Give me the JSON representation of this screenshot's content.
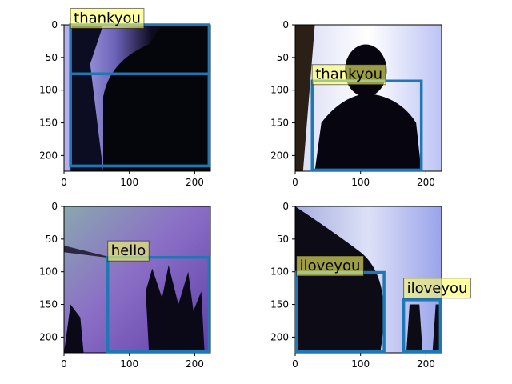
{
  "figure": {
    "detection_label_bg": "#ffff66",
    "box_color": "#1f77b4"
  },
  "panels": [
    {
      "name": "panel-top-left",
      "xticks": [
        "0",
        "100",
        "200"
      ],
      "yticks": [
        "0",
        "50",
        "100",
        "150",
        "200"
      ],
      "image_style": "dark-left",
      "detections": [
        {
          "label": "thankyou",
          "box": [
            10,
            0,
            222,
            216
          ],
          "label_anchor": [
            10,
            -8
          ]
        },
        {
          "label": "",
          "box": [
            10,
            75,
            222,
            216
          ],
          "label_anchor": null
        }
      ]
    },
    {
      "name": "panel-top-right",
      "xticks": [
        "0",
        "100",
        "200"
      ],
      "yticks": [
        "0",
        "50",
        "100",
        "150",
        "200"
      ],
      "image_style": "silhouette",
      "detections": [
        {
          "label": "thankyou",
          "box": [
            26,
            86,
            193,
            222
          ],
          "label_anchor": [
            26,
            78
          ]
        }
      ]
    },
    {
      "name": "panel-bottom-left",
      "xticks": [
        "0",
        "100",
        "200"
      ],
      "yticks": [
        "0",
        "50",
        "100",
        "150",
        "200"
      ],
      "image_style": "hand-purple",
      "detections": [
        {
          "label": "hello",
          "box": [
            67,
            78,
            222,
            222
          ],
          "label_anchor": [
            67,
            70
          ]
        }
      ]
    },
    {
      "name": "panel-bottom-right",
      "xticks": [
        "0",
        "100",
        "200"
      ],
      "yticks": [
        "0",
        "50",
        "100",
        "150",
        "200"
      ],
      "image_style": "dark-hand",
      "detections": [
        {
          "label": "iloveyou",
          "box": [
            2,
            101,
            136,
            222
          ],
          "label_anchor": [
            2,
            93
          ]
        },
        {
          "label": "iloveyou",
          "box": [
            166,
            143,
            222,
            222
          ],
          "label_anchor": [
            166,
            127
          ]
        }
      ]
    }
  ]
}
